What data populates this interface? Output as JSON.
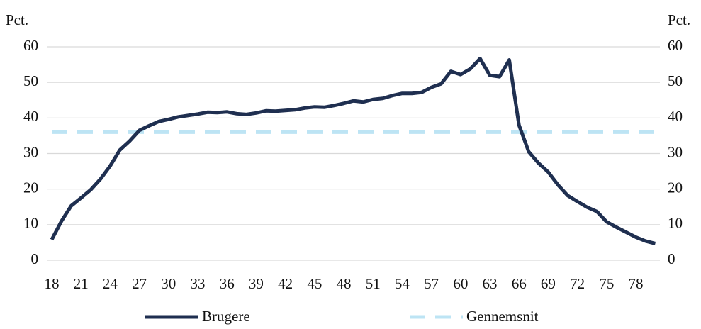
{
  "chart_data": {
    "type": "line",
    "ylabel": "Pct.",
    "y2label": "Pct.",
    "x": [
      18,
      19,
      20,
      21,
      22,
      23,
      24,
      25,
      26,
      27,
      28,
      29,
      30,
      31,
      32,
      33,
      34,
      35,
      36,
      37,
      38,
      39,
      40,
      41,
      42,
      43,
      44,
      45,
      46,
      47,
      48,
      49,
      50,
      51,
      52,
      53,
      54,
      55,
      56,
      57,
      58,
      59,
      60,
      61,
      62,
      63,
      64,
      65,
      66,
      67,
      68,
      69,
      70,
      71,
      72,
      73,
      74,
      75,
      76,
      77,
      78,
      79,
      80
    ],
    "xlim": [
      18,
      80
    ],
    "xticks": [
      18,
      21,
      24,
      27,
      30,
      33,
      36,
      39,
      42,
      45,
      48,
      51,
      54,
      57,
      60,
      63,
      66,
      69,
      72,
      75,
      78
    ],
    "ylim": [
      0,
      60
    ],
    "yticks": [
      0,
      10,
      20,
      30,
      40,
      50,
      60
    ],
    "y2lim": [
      0,
      60
    ],
    "y2ticks": [
      0,
      10,
      20,
      30,
      40,
      50,
      60
    ],
    "grid": true,
    "legend": "bottom",
    "series": [
      {
        "name": "Brugere",
        "color": "#1f2f50",
        "values": [
          5.8,
          11,
          15.3,
          17.5,
          19.8,
          22.8,
          26.5,
          31,
          33.5,
          36.5,
          37.8,
          39,
          39.6,
          40.3,
          40.7,
          41.1,
          41.6,
          41.5,
          41.7,
          41.2,
          41,
          41.4,
          42,
          41.9,
          42.1,
          42.3,
          42.8,
          43.1,
          43,
          43.5,
          44.1,
          44.8,
          44.5,
          45.2,
          45.5,
          46.3,
          46.9,
          46.9,
          47.2,
          48.6,
          49.6,
          53.1,
          52.2,
          53.8,
          56.7,
          52,
          51.6,
          56.3,
          38,
          30.5,
          27.3,
          24.8,
          21.2,
          18.2,
          16.5,
          14.9,
          13.7,
          10.8,
          9.3,
          7.9,
          6.5,
          5.4,
          4.7
        ]
      },
      {
        "name": "Gennemsnit",
        "color": "#bde4f4",
        "dashed": true,
        "values": [
          36,
          36,
          36,
          36,
          36,
          36,
          36,
          36,
          36,
          36,
          36,
          36,
          36,
          36,
          36,
          36,
          36,
          36,
          36,
          36,
          36,
          36,
          36,
          36,
          36,
          36,
          36,
          36,
          36,
          36,
          36,
          36,
          36,
          36,
          36,
          36,
          36,
          36,
          36,
          36,
          36,
          36,
          36,
          36,
          36,
          36,
          36,
          36,
          36,
          36,
          36,
          36,
          36,
          36,
          36,
          36,
          36,
          36,
          36,
          36,
          36,
          36,
          36
        ]
      }
    ]
  }
}
